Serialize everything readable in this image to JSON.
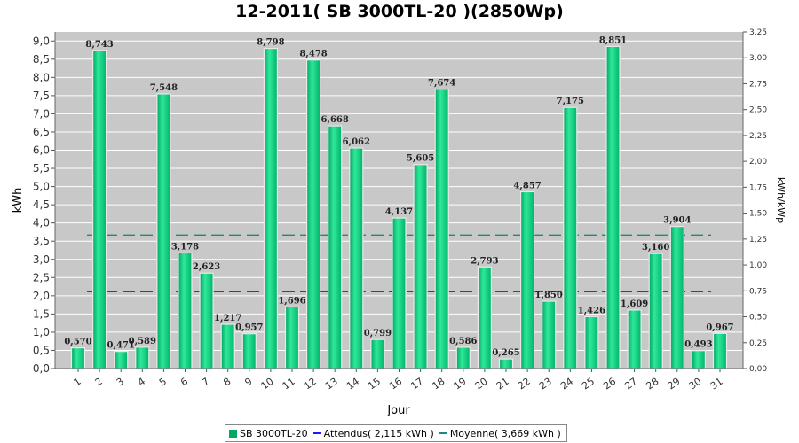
{
  "chart_data": {
    "type": "bar",
    "title": "12-2011( SB 3000TL-20 )(2850Wp)",
    "xlabel": "Jour",
    "ylabel": "kWh",
    "y2label": "kWh/kWp",
    "ylim": [
      0,
      9.25
    ],
    "y2lim": [
      0,
      3.25
    ],
    "yticks": [
      "0,0",
      "0,5",
      "1,0",
      "1,5",
      "2,0",
      "2,5",
      "3,0",
      "3,5",
      "4,0",
      "4,5",
      "5,0",
      "5,5",
      "6,0",
      "6,5",
      "7,0",
      "7,5",
      "8,0",
      "8,5",
      "9,0"
    ],
    "y2ticks": [
      "0,00",
      "0,25",
      "0,50",
      "0,75",
      "1,00",
      "1,25",
      "1,50",
      "1,75",
      "2,00",
      "2,25",
      "2,50",
      "2,75",
      "3,00",
      "3,25"
    ],
    "categories": [
      "1",
      "2",
      "3",
      "4",
      "5",
      "6",
      "7",
      "8",
      "9",
      "10",
      "11",
      "12",
      "13",
      "14",
      "15",
      "16",
      "17",
      "18",
      "19",
      "20",
      "21",
      "22",
      "23",
      "24",
      "25",
      "26",
      "27",
      "28",
      "29",
      "30",
      "31"
    ],
    "series": [
      {
        "name": "SB 3000TL-20",
        "values": [
          0.57,
          8.743,
          0.471,
          0.589,
          7.548,
          3.178,
          2.623,
          1.217,
          0.957,
          8.798,
          1.696,
          8.478,
          6.668,
          6.062,
          0.799,
          4.137,
          5.605,
          7.674,
          0.586,
          2.793,
          0.265,
          4.857,
          1.85,
          7.175,
          1.426,
          8.851,
          1.609,
          3.16,
          3.904,
          0.493,
          0.967
        ],
        "labels": [
          "0,570",
          "8,743",
          "0,471",
          "0,589",
          "7,548",
          "3,178",
          "2,623",
          "1,217",
          "0,957",
          "8,798",
          "1,696",
          "8,478",
          "6,668",
          "6,062",
          "0,799",
          "4,137",
          "5,605",
          "7,674",
          "0,586",
          "2,793",
          "0,265",
          "4,857",
          "1,850",
          "7,175",
          "1,426",
          "8,851",
          "1,609",
          "3,160",
          "3,904",
          "0,493",
          "0,967"
        ],
        "color": "#00c878"
      }
    ],
    "reference_lines": [
      {
        "name": "Attendus",
        "value": 2.115,
        "color": "#1a1aff"
      },
      {
        "name": "Moyenne",
        "value": 3.669,
        "color": "#1a8a7a"
      }
    ],
    "grid": true,
    "legend_position": "bottom"
  },
  "legend": {
    "bar_label": "SB 3000TL-20",
    "attendus_label": "Attendus( 2,115 kWh )",
    "moyenne_label": "Moyenne( 3,669 kWh )"
  }
}
